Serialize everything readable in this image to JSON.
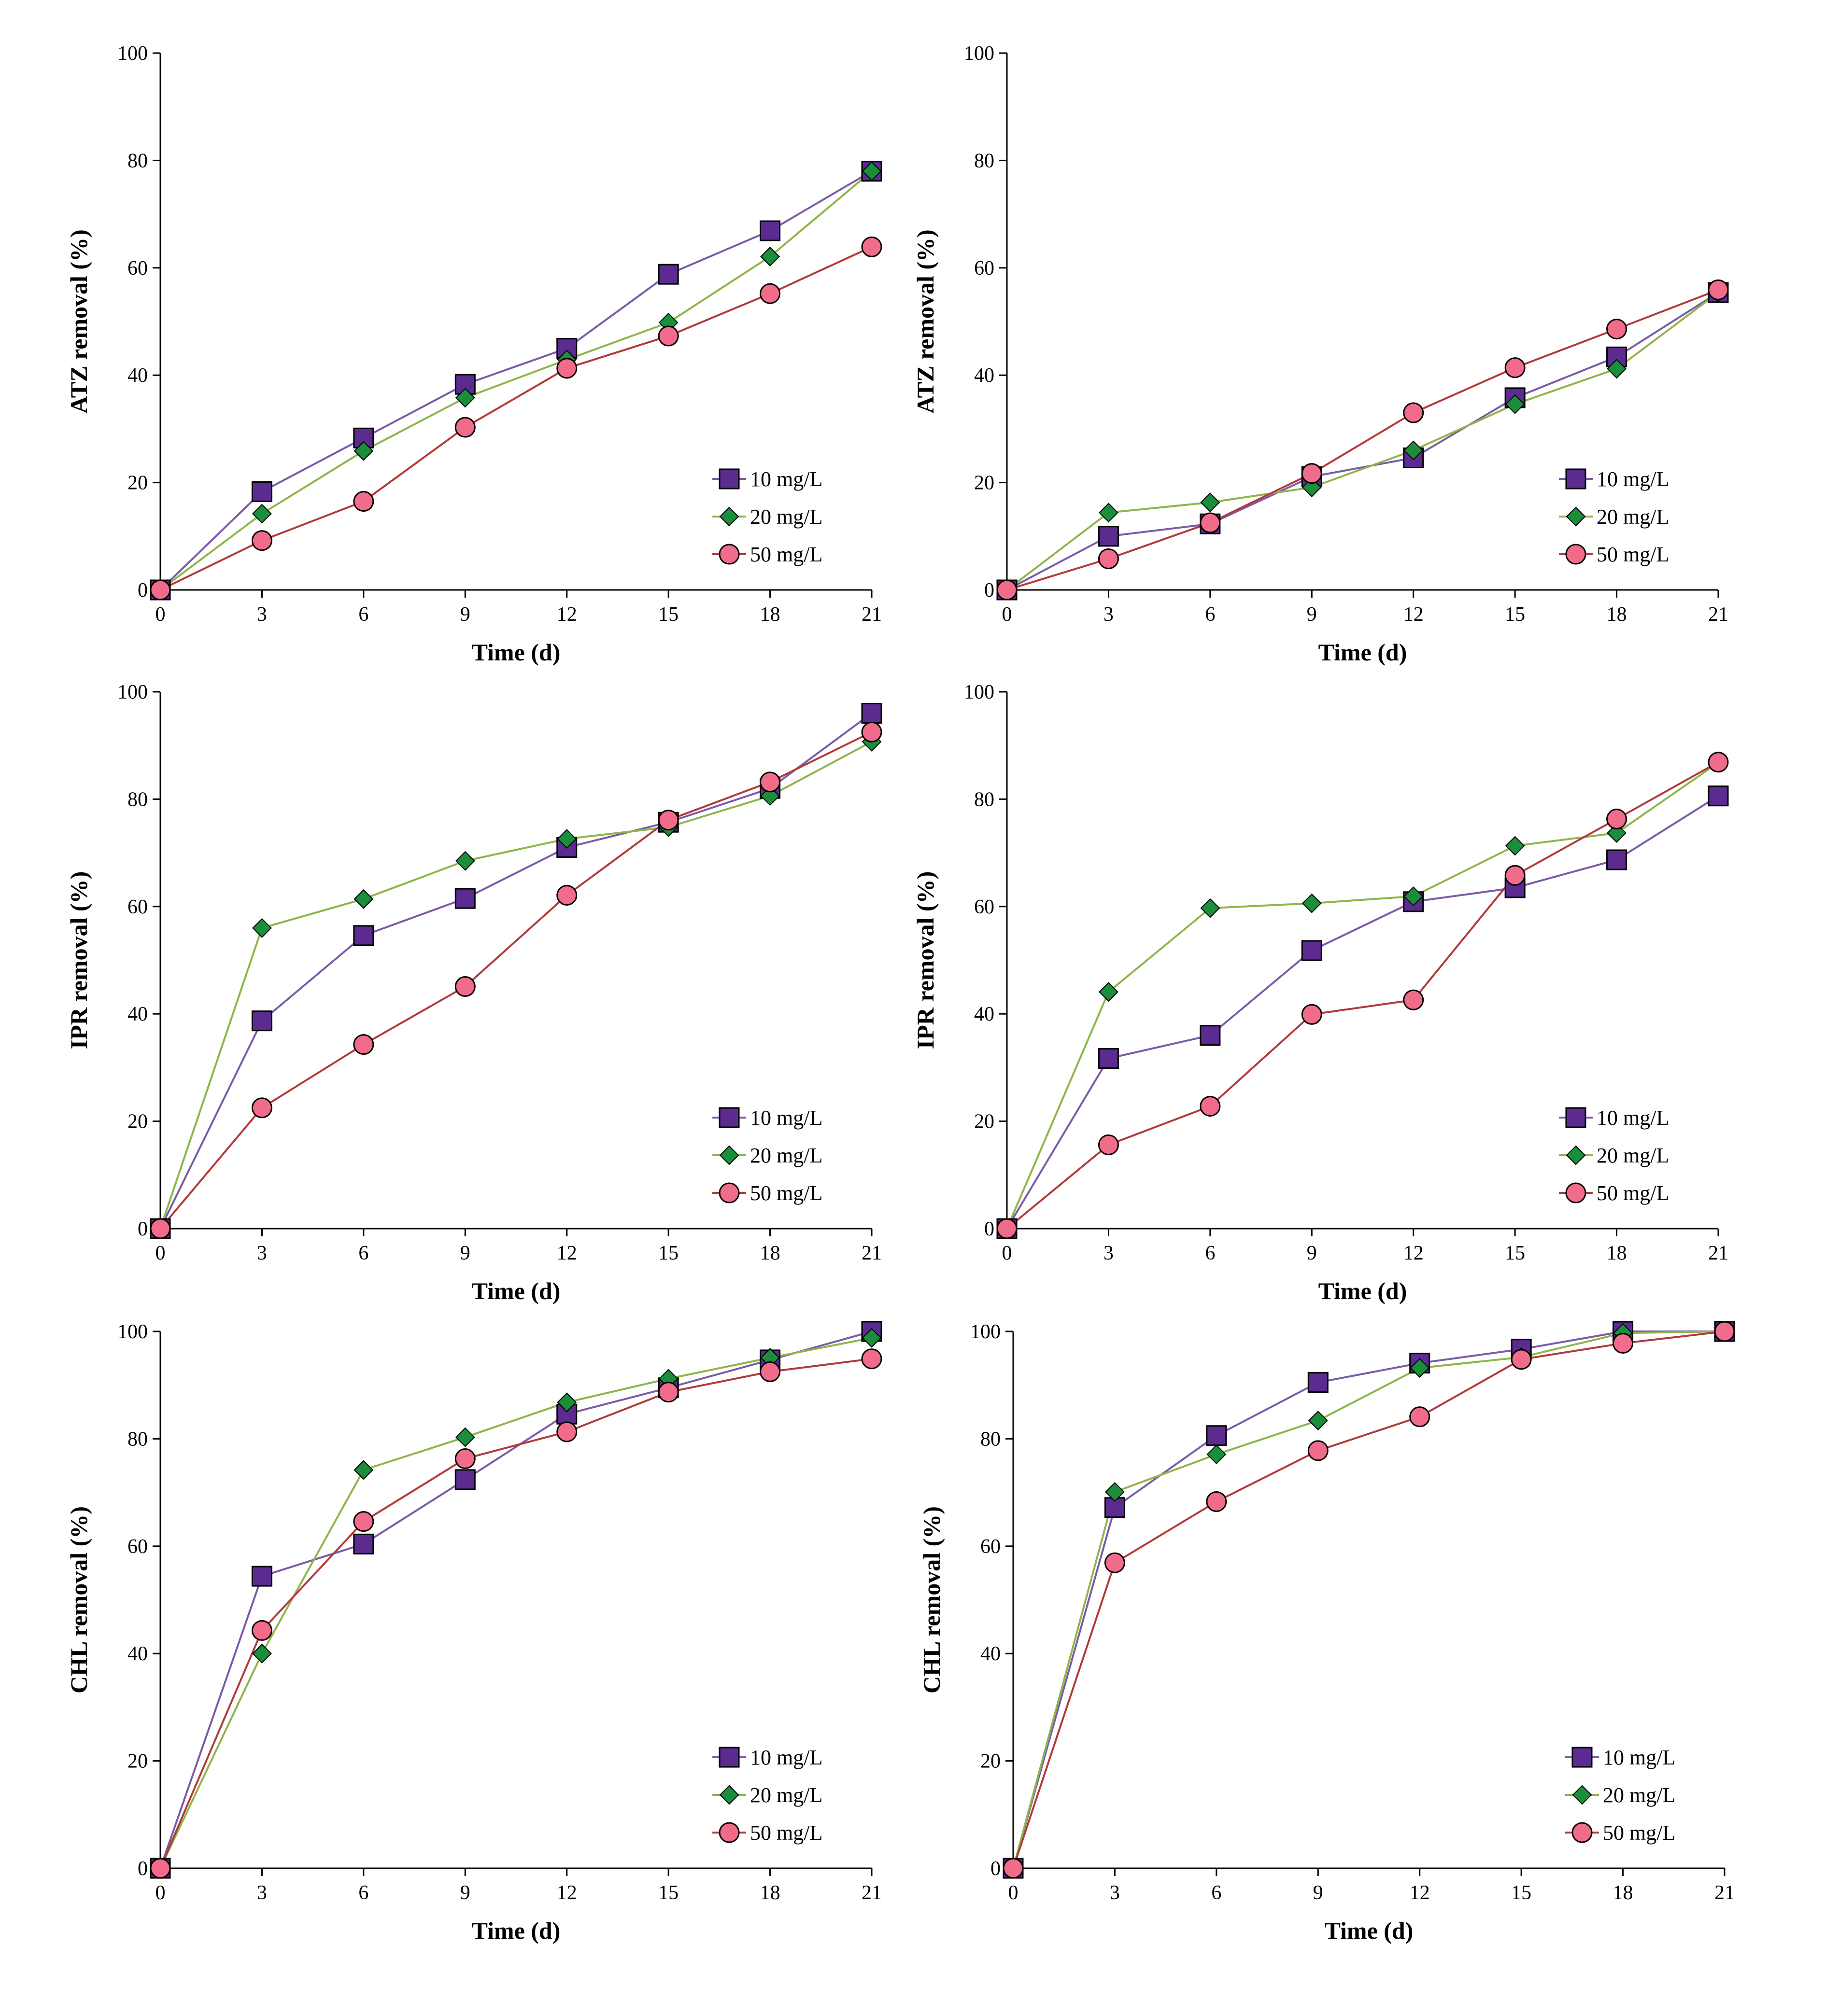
{
  "colors": {
    "series_10": "#5B2B90",
    "series_20": "#1B8E3B",
    "series_50": "#F06C8A",
    "line_10": "#7A5BA8",
    "line_20": "#8FB54A",
    "line_50": "#B23A3A",
    "axis": "#000000"
  },
  "legend": [
    "10 mg/L",
    "20 mg/L",
    "50 mg/L"
  ],
  "chart_data": [
    {
      "type": "line",
      "panel": "top-left",
      "xlabel": "Time (d)",
      "ylabel": "ATZ removal (%)",
      "x": [
        0,
        3,
        6,
        9,
        12,
        15,
        18,
        21
      ],
      "xticks": [
        "0",
        "3",
        "6",
        "9",
        "12",
        "15",
        "18",
        "21"
      ],
      "yticks": [
        "0",
        "20",
        "40",
        "60",
        "80",
        "100"
      ],
      "xlim": [
        0,
        21
      ],
      "ylim": [
        0,
        100
      ],
      "legend_position": "bottom-right",
      "series": [
        {
          "name": "10 mg/L",
          "marker": "square",
          "values": [
            0,
            18.3,
            28.3,
            38.3,
            45,
            58.8,
            66.9,
            78
          ]
        },
        {
          "name": "20 mg/L",
          "marker": "diamond",
          "values": [
            0,
            14.2,
            25.9,
            35.8,
            42.9,
            49.8,
            62.1,
            78
          ]
        },
        {
          "name": "50 mg/L",
          "marker": "circle",
          "values": [
            0,
            9.2,
            16.5,
            30.3,
            41.3,
            47.3,
            55.2,
            63.9
          ]
        }
      ]
    },
    {
      "type": "line",
      "panel": "top-right",
      "xlabel": "Time (d)",
      "ylabel": "ATZ removal (%)",
      "x": [
        0,
        3,
        6,
        9,
        12,
        15,
        18,
        21
      ],
      "xticks": [
        "0",
        "3",
        "6",
        "9",
        "12",
        "15",
        "18",
        "21"
      ],
      "yticks": [
        "0",
        "20",
        "40",
        "60",
        "80",
        "100"
      ],
      "xlim": [
        0,
        21
      ],
      "ylim": [
        0,
        100
      ],
      "legend_position": "bottom-right",
      "series": [
        {
          "name": "10 mg/L",
          "marker": "square",
          "values": [
            0,
            10,
            12.3,
            21.1,
            24.6,
            35.8,
            43.4,
            55.4
          ]
        },
        {
          "name": "20 mg/L",
          "marker": "diamond",
          "values": [
            0,
            14.4,
            16.3,
            19.1,
            26,
            34.6,
            41.2,
            55.4
          ]
        },
        {
          "name": "50 mg/L",
          "marker": "circle",
          "values": [
            0,
            5.8,
            12.5,
            21.7,
            33,
            41.4,
            48.6,
            55.9
          ]
        }
      ]
    },
    {
      "type": "line",
      "panel": "middle-left",
      "xlabel": "Time (d)",
      "ylabel": "IPR removal (%)",
      "x": [
        0,
        3,
        6,
        9,
        12,
        15,
        18,
        21
      ],
      "xticks": [
        "0",
        "3",
        "6",
        "9",
        "12",
        "15",
        "18",
        "21"
      ],
      "yticks": [
        "0",
        "20",
        "40",
        "60",
        "80",
        "100"
      ],
      "xlim": [
        0,
        21
      ],
      "ylim": [
        0,
        100
      ],
      "legend_position": "bottom-right",
      "series": [
        {
          "name": "10 mg/L",
          "marker": "square",
          "values": [
            0,
            38.7,
            54.6,
            61.5,
            71,
            75.7,
            82,
            96
          ]
        },
        {
          "name": "20 mg/L",
          "marker": "diamond",
          "values": [
            0,
            56,
            61.4,
            68.5,
            72.6,
            74.8,
            80.6,
            90.7
          ]
        },
        {
          "name": "50 mg/L",
          "marker": "circle",
          "values": [
            0,
            22.5,
            34.3,
            45.1,
            62.1,
            76.1,
            83.2,
            92.5
          ]
        }
      ]
    },
    {
      "type": "line",
      "panel": "middle-right",
      "xlabel": "Time (d)",
      "ylabel": "IPR removal (%)",
      "x": [
        0,
        3,
        6,
        9,
        12,
        15,
        18,
        21
      ],
      "xticks": [
        "0",
        "3",
        "6",
        "9",
        "12",
        "15",
        "18",
        "21"
      ],
      "yticks": [
        "0",
        "20",
        "40",
        "60",
        "80",
        "100"
      ],
      "xlim": [
        0,
        21
      ],
      "ylim": [
        0,
        100
      ],
      "legend_position": "bottom-right",
      "series": [
        {
          "name": "10 mg/L",
          "marker": "square",
          "values": [
            0,
            31.7,
            36,
            51.8,
            60.9,
            63.5,
            68.7,
            80.6
          ]
        },
        {
          "name": "20 mg/L",
          "marker": "diamond",
          "values": [
            0,
            44.1,
            59.7,
            60.6,
            61.9,
            71.3,
            73.7,
            86.8
          ]
        },
        {
          "name": "50 mg/L",
          "marker": "circle",
          "values": [
            0,
            15.6,
            22.8,
            39.9,
            42.6,
            65.8,
            76.3,
            86.9
          ]
        }
      ]
    },
    {
      "type": "line",
      "panel": "bottom-left",
      "xlabel": "Time (d)",
      "ylabel": "CHL removal (%)",
      "x": [
        0,
        3,
        6,
        9,
        12,
        15,
        18,
        21
      ],
      "xticks": [
        "0",
        "3",
        "6",
        "9",
        "12",
        "15",
        "18",
        "21"
      ],
      "yticks": [
        "0",
        "20",
        "40",
        "60",
        "80",
        "100"
      ],
      "xlim": [
        0,
        21
      ],
      "ylim": [
        0,
        100
      ],
      "legend_position": "bottom-right",
      "series": [
        {
          "name": "10 mg/L",
          "marker": "square",
          "values": [
            0,
            54.4,
            60.4,
            72.4,
            84.6,
            89.5,
            94.7,
            100
          ]
        },
        {
          "name": "20 mg/L",
          "marker": "diamond",
          "values": [
            0,
            40,
            74.2,
            80.3,
            86.8,
            91.2,
            95.1,
            98.8
          ]
        },
        {
          "name": "50 mg/L",
          "marker": "circle",
          "values": [
            0,
            44.3,
            64.6,
            76.3,
            81.3,
            88.7,
            92.5,
            94.9
          ]
        }
      ]
    },
    {
      "type": "line",
      "panel": "bottom-right",
      "xlabel": "Time (d)",
      "ylabel": "CHL removal (%)",
      "x": [
        0,
        3,
        6,
        9,
        12,
        15,
        18,
        21
      ],
      "xticks": [
        "0",
        "3",
        "6",
        "9",
        "12",
        "15",
        "18",
        "21"
      ],
      "yticks": [
        "0",
        "20",
        "40",
        "60",
        "80",
        "100"
      ],
      "xlim": [
        0,
        21
      ],
      "ylim": [
        0,
        100
      ],
      "legend_position": "bottom-right",
      "series": [
        {
          "name": "10 mg/L",
          "marker": "square",
          "values": [
            0,
            67.2,
            80.6,
            90.5,
            94.1,
            96.7,
            100,
            100
          ]
        },
        {
          "name": "20 mg/L",
          "marker": "diamond",
          "values": [
            0,
            70.1,
            77.1,
            83.4,
            93.2,
            95.2,
            99.7,
            100
          ]
        },
        {
          "name": "50 mg/L",
          "marker": "circle",
          "values": [
            0,
            56.9,
            68.3,
            77.8,
            84.1,
            94.8,
            97.8,
            100
          ]
        }
      ]
    }
  ]
}
